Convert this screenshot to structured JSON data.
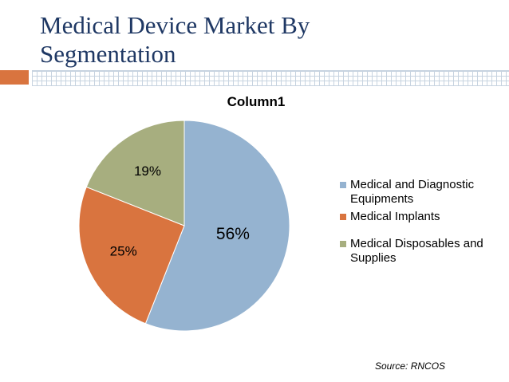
{
  "slide": {
    "title_lines": [
      "Medical Device Market By",
      "Segmentation"
    ],
    "source": "Source: RNCOS"
  },
  "chart_data": {
    "type": "pie",
    "title": "Column1",
    "categories": [
      "Medical and Diagnostic Equipments",
      "Medical Implants",
      "Medical Disposables and Supplies"
    ],
    "values": [
      56,
      25,
      19
    ],
    "labels": [
      "56%",
      "25%",
      "19%"
    ],
    "colors": [
      "#95b3d0",
      "#d9743f",
      "#a7ae7f"
    ],
    "legend_position": "right"
  }
}
